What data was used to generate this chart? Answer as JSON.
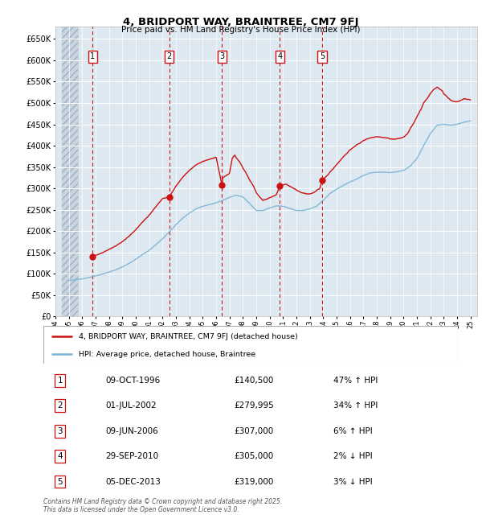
{
  "title": "4, BRIDPORT WAY, BRAINTREE, CM7 9FJ",
  "subtitle": "Price paid vs. HM Land Registry's House Price Index (HPI)",
  "ylabel_ticks": [
    0,
    50000,
    100000,
    150000,
    200000,
    250000,
    300000,
    350000,
    400000,
    450000,
    500000,
    550000,
    600000,
    650000
  ],
  "ylim": [
    0,
    680000
  ],
  "xlim_start": 1994.5,
  "xlim_end": 2025.5,
  "hpi_color": "#7ab3d4",
  "price_color": "#cc1111",
  "bg_plot": "#dde8f0",
  "bg_hatch_color": "#c8d5e0",
  "grid_color": "#ffffff",
  "transactions": [
    {
      "date_dec": 1996.77,
      "price": 140500,
      "label": "1"
    },
    {
      "date_dec": 2002.5,
      "price": 279995,
      "label": "2"
    },
    {
      "date_dec": 2006.44,
      "price": 307000,
      "label": "3"
    },
    {
      "date_dec": 2010.75,
      "price": 305000,
      "label": "4"
    },
    {
      "date_dec": 2013.92,
      "price": 319000,
      "label": "5"
    }
  ],
  "table_rows": [
    {
      "num": "1",
      "date": "09-OCT-1996",
      "price": "£140,500",
      "hpi": "47% ↑ HPI"
    },
    {
      "num": "2",
      "date": "01-JUL-2002",
      "price": "£279,995",
      "hpi": "34% ↑ HPI"
    },
    {
      "num": "3",
      "date": "09-JUN-2006",
      "price": "£307,000",
      "hpi": "6% ↑ HPI"
    },
    {
      "num": "4",
      "date": "29-SEP-2010",
      "price": "£305,000",
      "hpi": "2% ↓ HPI"
    },
    {
      "num": "5",
      "date": "05-DEC-2013",
      "price": "£319,000",
      "hpi": "3% ↓ HPI"
    }
  ],
  "legend_labels": [
    "4, BRIDPORT WAY, BRAINTREE, CM7 9FJ (detached house)",
    "HPI: Average price, detached house, Braintree"
  ],
  "footnote": "Contains HM Land Registry data © Crown copyright and database right 2025.\nThis data is licensed under the Open Government Licence v3.0."
}
